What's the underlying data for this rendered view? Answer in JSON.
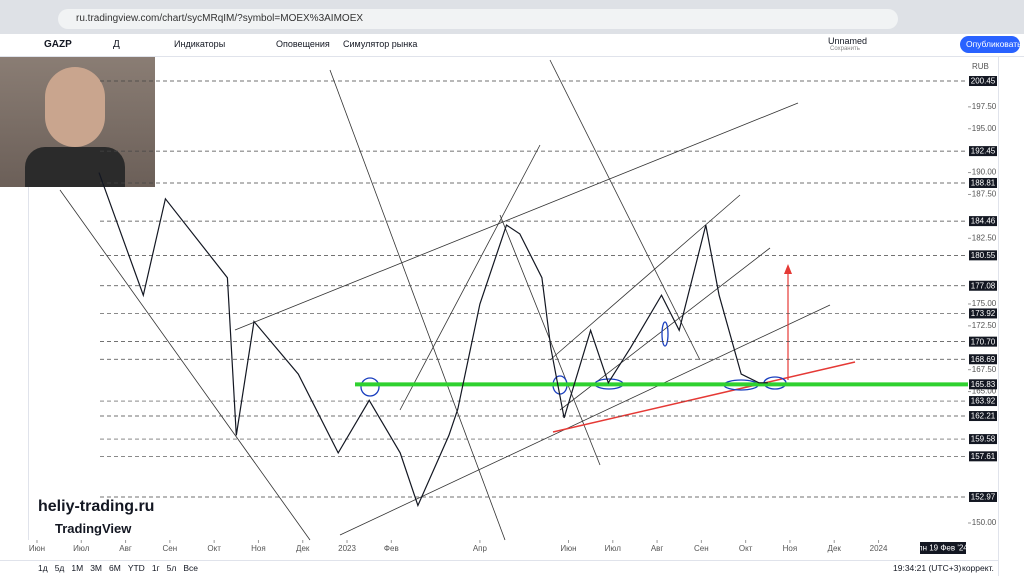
{
  "browser": {
    "url": "ru.tradingview.com/chart/sycMRqIM/?symbol=MOEX%3AIMOEX"
  },
  "toolbar": {
    "symbol": "GAZP",
    "interval": "Д",
    "indicators": "Индикаторы",
    "alerts": "Оповещения",
    "replay": "Симулятор рынка",
    "layout_name": "Unnamed",
    "save": "Сохранить",
    "publish": "Опубликовать"
  },
  "chart": {
    "currency": "RUB",
    "watermark": "heliy-trading.ru",
    "brand": "TradingView",
    "xlim": [
      -0.835,
      21.02
    ],
    "ylim": [
      148.06,
      202.62
    ],
    "xticks": [
      {
        "value": 0,
        "label": "Июн"
      },
      {
        "value": 1,
        "label": "Июл"
      },
      {
        "value": 2,
        "label": "Авг"
      },
      {
        "value": 3,
        "label": "Сен"
      },
      {
        "value": 4,
        "label": "Окт"
      },
      {
        "value": 5,
        "label": "Ноя"
      },
      {
        "value": 6,
        "label": "Дек"
      },
      {
        "value": 7,
        "label": "2023"
      },
      {
        "value": 8,
        "label": "Фев"
      },
      {
        "value": 10,
        "label": "Апр"
      },
      {
        "value": 12,
        "label": "Июн"
      },
      {
        "value": 13,
        "label": "Июл"
      },
      {
        "value": 14,
        "label": "Авг"
      },
      {
        "value": 15,
        "label": "Сен"
      },
      {
        "value": 16,
        "label": "Окт"
      },
      {
        "value": 17,
        "label": "Ноя"
      },
      {
        "value": 18,
        "label": "Дек"
      },
      {
        "value": 19,
        "label": "2024"
      }
    ],
    "yticks": [
      {
        "value": 197.5,
        "label": "197.50"
      },
      {
        "value": 195,
        "label": "195.00"
      },
      {
        "value": 190,
        "label": "190.00"
      },
      {
        "value": 187.5,
        "label": "187.50"
      },
      {
        "value": 182.5,
        "label": "182.50"
      },
      {
        "value": 175,
        "label": "175.00"
      },
      {
        "value": 172.5,
        "label": "172.50"
      },
      {
        "value": 167.5,
        "label": "167.50"
      },
      {
        "value": 165,
        "label": "165.00"
      },
      {
        "value": 150,
        "label": "150.00"
      }
    ],
    "levels": [
      200.45,
      192.45,
      188.81,
      184.46,
      180.55,
      177.08,
      173.92,
      {
        "value": 170.7,
        "label": "170.70"
      },
      168.69,
      165.83,
      163.92,
      162.21,
      159.58,
      157.61,
      152.97
    ],
    "x": [
      1.4,
      2.4,
      2.9,
      4.3,
      4.5,
      4.9,
      5.9,
      6.8,
      7.5,
      8.2,
      8.6,
      9.3,
      9.5,
      10.0,
      10.6,
      10.9,
      11.4,
      11.6,
      11.9,
      12.5,
      12.9,
      13.4,
      14.1,
      14.5,
      15.1,
      15.4,
      15.9,
      16.3,
      16.5
    ],
    "values": [
      190,
      176,
      187,
      178,
      160,
      173,
      167,
      158,
      164,
      158,
      152,
      160,
      163,
      175,
      184,
      183,
      178,
      170,
      162,
      172,
      166,
      170,
      176,
      172,
      184,
      176,
      167,
      166,
      166
    ],
    "date_label": "пн 19 Фев '24"
  },
  "bottom": {
    "ranges": [
      "1д",
      "5д",
      "1М",
      "3М",
      "6М",
      "YTD",
      "1г",
      "5л",
      "Все"
    ],
    "time": "19:34:21 (UTC+3)",
    "adjust": "коррект."
  }
}
